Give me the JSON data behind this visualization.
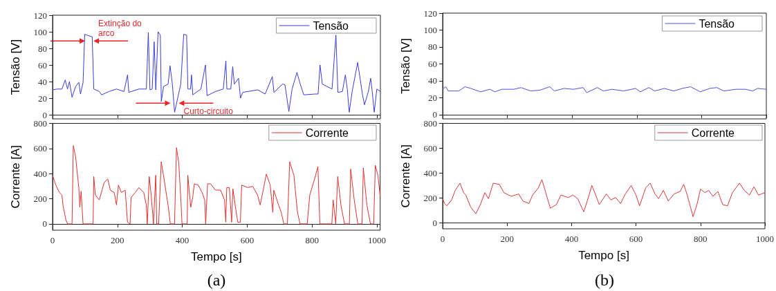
{
  "chart_data": [
    {
      "type": "line",
      "ylabel": "Tensão [V]",
      "xlim": [
        0,
        1010
      ],
      "xticks": [
        0,
        200,
        400,
        600,
        800,
        1000
      ],
      "ylim": [
        -5,
        120
      ],
      "yticks": [
        0,
        20,
        40,
        60,
        80,
        100,
        120
      ],
      "tick_labels": "y",
      "legend": "top right",
      "series": [
        {
          "name": "Tensão",
          "color": "#3a3ad8",
          "x": [
            0,
            14,
            29,
            39,
            46,
            52,
            60,
            71,
            81,
            86,
            94,
            99,
            113,
            122,
            127,
            144,
            151,
            174,
            197,
            220,
            231,
            235,
            266,
            289,
            295,
            300,
            307,
            313,
            318,
            325,
            332,
            335,
            342,
            356,
            362,
            369,
            376,
            386,
            395,
            404,
            413,
            417,
            425,
            428,
            432,
            457,
            471,
            476,
            502,
            526,
            534,
            537,
            549,
            555,
            560,
            573,
            579,
            586,
            632,
            655,
            677,
            682,
            709,
            716,
            728,
            738,
            753,
            763,
            774,
            809,
            818,
            824,
            831,
            861,
            873,
            879,
            893,
            902,
            908,
            914,
            923,
            940,
            955,
            961,
            973,
            980,
            984,
            991,
            999,
            1010
          ],
          "values": [
            30,
            31,
            31,
            42,
            31,
            40,
            21,
            34,
            39,
            25,
            39,
            97,
            95,
            94,
            31,
            28,
            24,
            28,
            31,
            28,
            48,
            27,
            31,
            31,
            99,
            30,
            31,
            88,
            30,
            100,
            96,
            16,
            34,
            37,
            59,
            37,
            3,
            21,
            37,
            97,
            96,
            31,
            31,
            48,
            24,
            31,
            60,
            23,
            28,
            31,
            65,
            31,
            31,
            58,
            37,
            44,
            20,
            27,
            30,
            25,
            46,
            27,
            37,
            36,
            4,
            31,
            51,
            37,
            24,
            25,
            25,
            60,
            37,
            31,
            96,
            27,
            28,
            48,
            31,
            3,
            28,
            63,
            24,
            12,
            28,
            44,
            31,
            3,
            31,
            28
          ]
        }
      ],
      "annotations": [
        {
          "text": "Extinção do\narco",
          "x": 113,
          "y": 89
        },
        {
          "text": "Curto-circuito",
          "x": 376,
          "y": 14
        }
      ]
    },
    {
      "type": "line",
      "ylabel": "Corrente [A]",
      "xlabel": "Tempo [s]",
      "xlim": [
        0,
        1010
      ],
      "xticks": [
        0,
        200,
        400,
        600,
        800,
        1000
      ],
      "ylim": [
        -50,
        800
      ],
      "yticks": [
        0,
        200,
        400,
        600,
        800
      ],
      "legend": "top right",
      "series": [
        {
          "name": "Corrente",
          "color": "#e03030",
          "x": [
            0,
            10,
            21,
            29,
            32,
            41,
            46,
            60,
            64,
            71,
            81,
            84,
            88,
            94,
            125,
            127,
            132,
            144,
            159,
            170,
            178,
            190,
            197,
            203,
            212,
            224,
            231,
            239,
            242,
            255,
            266,
            281,
            289,
            292,
            298,
            304,
            311,
            318,
            321,
            327,
            335,
            342,
            357,
            363,
            376,
            382,
            389,
            396,
            399,
            415,
            417,
            426,
            432,
            437,
            449,
            461,
            469,
            472,
            478,
            487,
            502,
            518,
            530,
            534,
            537,
            545,
            552,
            556,
            564,
            571,
            579,
            583,
            602,
            617,
            632,
            640,
            648,
            659,
            671,
            679,
            682,
            694,
            705,
            713,
            724,
            731,
            744,
            755,
            763,
            785,
            793,
            809,
            818,
            824,
            861,
            865,
            873,
            879,
            889,
            900,
            915,
            919,
            930,
            941,
            954,
            958,
            969,
            980,
            990,
            995,
            1003,
            1010
          ],
          "values": [
            387,
            309,
            250,
            230,
            151,
            33,
            0,
            0,
            623,
            535,
            285,
            132,
            260,
            0,
            0,
            377,
            230,
            191,
            328,
            358,
            269,
            250,
            151,
            309,
            250,
            269,
            14,
            0,
            210,
            250,
            289,
            250,
            151,
            0,
            377,
            230,
            0,
            387,
            0,
            0,
            495,
            387,
            132,
            0,
            0,
            607,
            486,
            171,
            0,
            0,
            387,
            132,
            210,
            319,
            309,
            250,
            191,
            0,
            319,
            319,
            269,
            269,
            191,
            14,
            289,
            289,
            14,
            279,
            132,
            14,
            14,
            309,
            289,
            299,
            230,
            151,
            250,
            397,
            309,
            92,
            269,
            171,
            92,
            0,
            0,
            495,
            387,
            92,
            0,
            0,
            230,
            368,
            456,
            0,
            0,
            191,
            0,
            377,
            151,
            0,
            0,
            436,
            191,
            0,
            0,
            446,
            151,
            0,
            0,
            466,
            387,
            220
          ]
        }
      ],
      "annotations": [
        "(a)"
      ]
    },
    {
      "type": "line",
      "ylabel": "Tensão [V]",
      "xlim": [
        0,
        1000
      ],
      "xticks": [
        0,
        200,
        400,
        600,
        800,
        1000
      ],
      "ylim": [
        -5,
        120
      ],
      "yticks": [
        0,
        20,
        40,
        60,
        80,
        100,
        120
      ],
      "tick_labels": "y",
      "legend": "top right",
      "series": [
        {
          "name": "Tensão",
          "color": "#5050d8",
          "x": [
            0,
            10,
            17,
            50,
            69,
            87,
            117,
            146,
            161,
            183,
            220,
            242,
            272,
            301,
            331,
            345,
            375,
            404,
            434,
            445,
            478,
            497,
            523,
            559,
            596,
            611,
            637,
            655,
            685,
            714,
            740,
            766,
            796,
            825,
            847,
            869,
            906,
            936,
            958,
            973,
            1000
          ],
          "values": [
            30,
            33,
            28,
            28,
            33,
            31,
            27,
            30,
            27,
            30,
            30,
            32,
            28,
            29,
            33,
            28,
            31,
            30,
            32,
            26,
            32,
            28,
            30,
            28,
            31,
            27,
            32,
            28,
            31,
            28,
            31,
            33,
            27,
            31,
            32,
            28,
            30,
            30,
            28,
            31,
            30
          ]
        }
      ]
    },
    {
      "type": "line",
      "ylabel": "Corrente [A]",
      "xlabel": "Tempo [s]",
      "xlim": [
        0,
        1000
      ],
      "xticks": [
        0,
        200,
        400,
        600,
        800,
        1000
      ],
      "ylim": [
        -50,
        800
      ],
      "yticks": [
        0,
        200,
        400,
        600,
        800
      ],
      "legend": "top right",
      "series": [
        {
          "name": "Corrente",
          "color": "#d83a3a",
          "x": [
            0,
            6,
            13,
            28,
            39,
            54,
            65,
            72,
            87,
            103,
            117,
            131,
            142,
            157,
            176,
            190,
            213,
            236,
            249,
            268,
            279,
            297,
            308,
            320,
            334,
            353,
            367,
            390,
            404,
            419,
            438,
            452,
            463,
            475,
            486,
            508,
            522,
            537,
            552,
            567,
            585,
            600,
            611,
            630,
            644,
            659,
            670,
            685,
            700,
            718,
            737,
            748,
            759,
            777,
            789,
            800,
            814,
            825,
            839,
            854,
            869,
            884,
            899,
            921,
            936,
            952,
            966,
            980,
            1000
          ],
          "values": [
            193,
            154,
            135,
            183,
            260,
            318,
            241,
            222,
            125,
            71,
            145,
            241,
            193,
            318,
            308,
            241,
            212,
            231,
            174,
            154,
            222,
            280,
            347,
            241,
            116,
            145,
            222,
            202,
            222,
            193,
            87,
            202,
            299,
            222,
            145,
            231,
            183,
            202,
            154,
            231,
            299,
            222,
            135,
            280,
            318,
            231,
            193,
            260,
            174,
            231,
            251,
            308,
            222,
            48,
            145,
            270,
            241,
            260,
            212,
            251,
            145,
            135,
            241,
            318,
            260,
            222,
            289,
            222,
            241
          ]
        }
      ],
      "annotations": [
        "(b)"
      ]
    }
  ]
}
